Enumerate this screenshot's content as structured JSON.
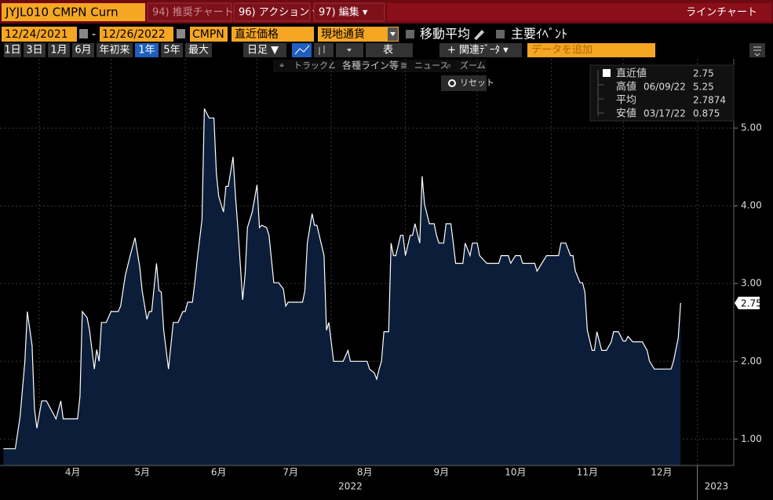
{
  "ui": {
    "security": "JYJL010 CMPN Curn",
    "tabs": [
      "94) 推奨チャート",
      "96) アクション ▾",
      "97) 編集 ▾"
    ],
    "chart_type_label": "ラインチャート",
    "start_date": "12/24/2021",
    "dash": "-",
    "end_date": "12/26/2022",
    "source": "CMPN",
    "field": "直近価格",
    "currency": "現地通貨",
    "moving_average": "移動平均",
    "events": "主要ｲﾍﾞﾝﾄ",
    "periods": [
      "1日",
      "3日",
      "1月",
      "6月",
      "年初来",
      "1年",
      "5年",
      "最大"
    ],
    "frequency": "日足 ▼",
    "table": "表",
    "related": "+ 関連ﾃﾞｰﾀ ▾",
    "add_data": "データを追加",
    "tools": [
      "トラック",
      "各種ライン等",
      "ニュース",
      "ズーム"
    ],
    "reset": "リセット"
  },
  "chart_data": {
    "type": "area",
    "color": "#ffffff",
    "fill": "#0b1d38",
    "x": [
      76,
      81,
      83,
      85,
      86,
      88,
      89,
      90,
      92,
      94,
      98,
      100,
      101,
      104,
      107,
      108,
      109,
      111,
      112,
      114,
      115,
      116,
      117,
      119,
      121,
      124,
      125,
      127,
      129,
      131,
      133,
      134,
      136,
      137,
      138,
      140,
      141,
      142,
      143,
      145,
      146,
      147,
      149,
      151,
      152,
      153,
      155,
      156,
      157,
      159,
      160,
      162,
      164,
      165,
      166,
      168,
      169,
      170,
      172,
      173,
      174,
      176,
      177,
      178,
      180,
      182,
      183,
      184,
      186,
      187,
      189,
      191,
      193,
      194,
      195,
      198,
      201,
      202,
      203,
      205,
      206,
      207,
      208,
      210,
      211,
      212,
      214,
      216,
      218,
      220,
      221,
      222,
      225,
      228,
      229,
      231,
      232,
      233,
      234,
      235,
      237,
      238,
      239,
      240,
      242,
      243,
      244,
      246,
      247,
      248,
      250,
      251,
      252,
      254,
      256,
      257,
      258,
      260,
      261,
      263,
      264,
      265,
      268,
      269,
      271,
      272,
      274,
      275,
      278,
      283,
      284,
      287,
      288,
      290,
      292,
      293,
      298,
      299,
      301,
      303,
      308,
      309,
      311,
      313,
      314,
      315,
      317,
      318,
      319,
      320,
      322,
      323,
      324,
      326,
      328,
      330,
      331,
      333,
      335,
      336,
      337,
      339,
      343,
      345,
      346,
      348,
      355,
      356,
      358,
      359
    ],
    "values": [
      0.875,
      0.875,
      1.29,
      2.0,
      2.64,
      2.2,
      1.39,
      1.14,
      1.49,
      1.49,
      1.26,
      1.49,
      1.26,
      1.26,
      1.26,
      1.55,
      2.64,
      2.56,
      2.4,
      1.9,
      2.15,
      2.0,
      2.5,
      2.5,
      2.64,
      2.64,
      2.71,
      3.11,
      3.36,
      3.59,
      3.21,
      2.91,
      2.54,
      2.64,
      2.64,
      3.26,
      2.91,
      2.89,
      2.4,
      1.9,
      2.2,
      2.5,
      2.5,
      2.64,
      2.64,
      2.76,
      2.76,
      3.01,
      3.31,
      3.82,
      5.25,
      5.13,
      5.13,
      4.42,
      4.12,
      3.92,
      4.25,
      4.25,
      4.63,
      4.12,
      3.72,
      2.79,
      3.11,
      3.72,
      3.92,
      4.27,
      3.72,
      3.75,
      3.72,
      3.62,
      3.01,
      3.01,
      2.93,
      2.71,
      2.76,
      2.76,
      2.76,
      2.91,
      3.52,
      3.9,
      3.75,
      3.75,
      3.62,
      3.36,
      2.4,
      2.5,
      2.0,
      2.0,
      2.0,
      2.14,
      2.0,
      2.0,
      2.0,
      2.0,
      1.9,
      1.85,
      1.77,
      1.9,
      2.0,
      2.38,
      2.38,
      3.52,
      3.36,
      3.36,
      3.62,
      3.62,
      3.36,
      3.62,
      3.62,
      3.77,
      3.52,
      4.38,
      4.02,
      3.77,
      3.77,
      3.62,
      3.52,
      3.52,
      3.77,
      3.77,
      3.52,
      3.26,
      3.26,
      3.52,
      3.36,
      3.52,
      3.52,
      3.36,
      3.26,
      3.26,
      3.36,
      3.36,
      3.26,
      3.36,
      3.36,
      3.26,
      3.26,
      3.16,
      3.26,
      3.36,
      3.36,
      3.52,
      3.52,
      3.36,
      3.36,
      3.16,
      3.01,
      3.01,
      2.89,
      2.4,
      2.14,
      2.14,
      2.38,
      2.14,
      2.14,
      2.25,
      2.38,
      2.38,
      2.26,
      2.26,
      2.32,
      2.25,
      2.25,
      2.14,
      2.0,
      1.9,
      1.9,
      2.0,
      2.3,
      2.75
    ],
    "xlim": [
      74.6,
      381.2
    ],
    "xticks": [
      {
        "value": 105,
        "label": "4月"
      },
      {
        "value": 134,
        "label": "5月"
      },
      {
        "value": 166,
        "label": "6月"
      },
      {
        "value": 196,
        "label": "7月"
      },
      {
        "value": 227,
        "label": "8月"
      },
      {
        "value": 259,
        "label": "9月"
      },
      {
        "value": 290,
        "label": "10月"
      },
      {
        "value": 320,
        "label": "11月"
      },
      {
        "value": 351,
        "label": "12月"
      }
    ],
    "x_grid": [
      91,
      121,
      152,
      182,
      213,
      244,
      274,
      305,
      335,
      366
    ],
    "year_labels": [
      {
        "value": 221,
        "label": "2022"
      },
      {
        "value": 366,
        "label": "2023"
      }
    ],
    "ylim": [
      0.66,
      5.89
    ],
    "yticks": [
      {
        "value": 1,
        "label": "1.00"
      },
      {
        "value": 2,
        "label": "2.00"
      },
      {
        "value": 3,
        "label": "3.00"
      },
      {
        "value": 4,
        "label": "4.00"
      },
      {
        "value": 5,
        "label": "5.00"
      }
    ],
    "grid": true,
    "stats": [
      {
        "label": "直近値",
        "value": 2.75
      },
      {
        "label": "高値",
        "date": "06/09/22",
        "value": 5.25
      },
      {
        "label": "平均",
        "value": 2.7874
      },
      {
        "label": "安値",
        "date": "03/17/22",
        "value": 0.875
      }
    ]
  }
}
